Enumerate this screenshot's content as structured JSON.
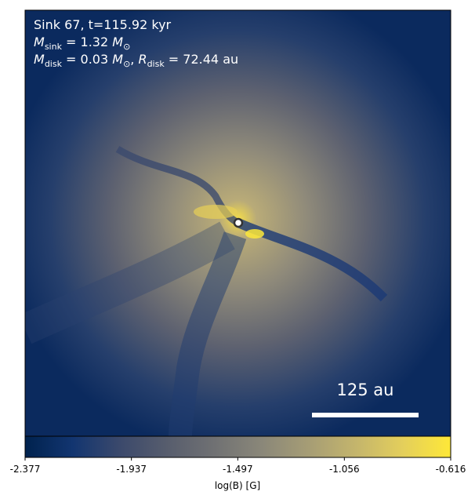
{
  "chart_data": {
    "type": "image",
    "annotations": [
      [
        {
          "text": "Sink 67, t=115.92 kyr"
        }
      ],
      [
        {
          "text": "M",
          "italic": true
        },
        {
          "text": "sink",
          "sub": true
        },
        {
          "text": " = 1.32 "
        },
        {
          "text": "M",
          "italic": true
        },
        {
          "text": "⊙",
          "sub": true
        }
      ],
      [
        {
          "text": "M",
          "italic": true
        },
        {
          "text": "disk",
          "sub": true
        },
        {
          "text": " = 0.03 "
        },
        {
          "text": "M",
          "italic": true
        },
        {
          "text": "⊙",
          "sub": true
        },
        {
          "text": ", "
        },
        {
          "text": "R",
          "italic": true
        },
        {
          "text": "disk",
          "sub": true
        },
        {
          "text": " = 72.44 au"
        }
      ]
    ],
    "scale_bar_label": "125 au",
    "colorbar": {
      "label": "log(B) [G]",
      "lim": [
        -2.377,
        -0.616
      ],
      "ticks": [
        -2.377,
        -1.937,
        -1.497,
        -1.056,
        -0.616
      ],
      "colors": [
        "#00224e",
        "#123570",
        "#3b496c",
        "#575d6d",
        "#707173",
        "#8a8779",
        "#a69d75",
        "#c4b56c",
        "#e4cf5b",
        "#fee838"
      ]
    }
  }
}
